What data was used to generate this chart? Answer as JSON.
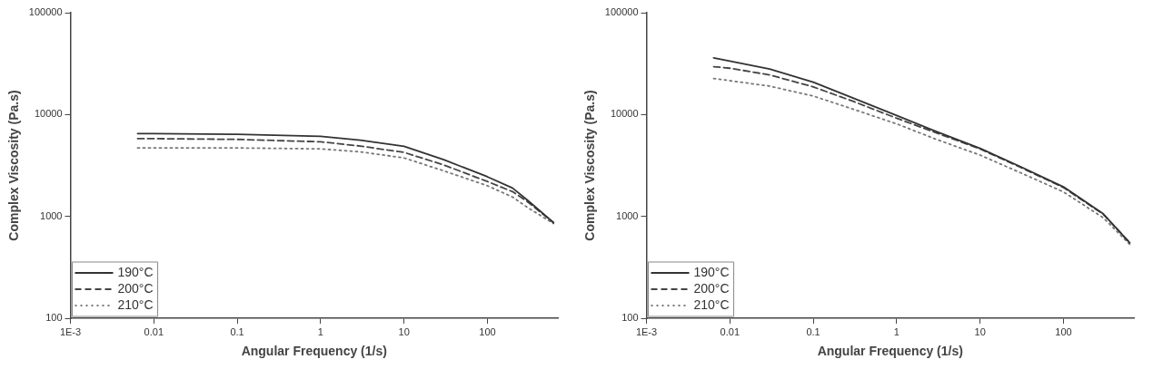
{
  "chart_data": [
    {
      "type": "line",
      "xlabel": "Angular Frequency (1/s)",
      "ylabel": "Complex Viscosity (Pa.s)",
      "log": "xy",
      "xlim": [
        0.001,
        700
      ],
      "ylim": [
        100,
        100000
      ],
      "xticks": [
        {
          "value": 0.001,
          "label": "1E-3"
        },
        0.01,
        0.1,
        1,
        10,
        100
      ],
      "yticks": [
        100,
        1000,
        10000,
        100000
      ],
      "grid": false,
      "legend": "bottom left",
      "marker": "none",
      "series": [
        {
          "name": "190°C",
          "color": "#333333",
          "line_style": "solid",
          "x": [
            0.0064,
            0.01,
            0.1,
            1,
            3,
            10,
            30,
            100,
            200,
            300,
            620
          ],
          "values": [
            6500,
            6500,
            6400,
            6100,
            5600,
            4870,
            3600,
            2450,
            1900,
            1450,
            870
          ]
        },
        {
          "name": "200°C",
          "color": "#444444",
          "line_style": "dashed",
          "x": [
            0.0064,
            0.01,
            0.1,
            1,
            3,
            10,
            30,
            100,
            200,
            300,
            620
          ],
          "values": [
            5800,
            5800,
            5700,
            5400,
            4900,
            4250,
            3200,
            2200,
            1750,
            1400,
            870
          ]
        },
        {
          "name": "210°C",
          "color": "#777777",
          "line_style": "dotted",
          "x": [
            0.0064,
            0.01,
            0.1,
            1,
            3,
            10,
            30,
            100,
            200,
            300,
            620
          ],
          "values": [
            4700,
            4700,
            4700,
            4600,
            4300,
            3750,
            2800,
            2000,
            1550,
            1230,
            850
          ]
        }
      ]
    },
    {
      "type": "line",
      "xlabel": "Angular Frequency (1/s)",
      "ylabel": "Complex Viscosity (Pa.s)",
      "log": "xy",
      "xlim": [
        0.001,
        700
      ],
      "ylim": [
        100,
        100000
      ],
      "xticks": [
        {
          "value": 0.001,
          "label": "1E-3"
        },
        0.01,
        0.1,
        1,
        10,
        100
      ],
      "yticks": [
        100,
        1000,
        10000,
        100000
      ],
      "grid": false,
      "legend": "bottom left",
      "marker": "none",
      "series": [
        {
          "name": "190°C",
          "color": "#333333",
          "line_style": "solid",
          "x": [
            0.0064,
            0.01,
            0.03,
            0.1,
            0.3,
            1,
            3,
            10,
            30,
            100,
            300,
            625
          ],
          "values": [
            36000,
            33500,
            28000,
            20800,
            14500,
            9800,
            6800,
            4650,
            3100,
            1950,
            1060,
            550
          ]
        },
        {
          "name": "200°C",
          "color": "#444444",
          "line_style": "dashed",
          "x": [
            0.0064,
            0.01,
            0.03,
            0.1,
            0.3,
            1,
            3,
            10,
            30,
            100,
            300,
            625
          ],
          "values": [
            29500,
            28500,
            24500,
            18700,
            13500,
            9200,
            6600,
            4600,
            3050,
            1920,
            1050,
            550
          ]
        },
        {
          "name": "210°C",
          "color": "#777777",
          "line_style": "dotted",
          "x": [
            0.0064,
            0.01,
            0.03,
            0.1,
            0.3,
            1,
            3,
            10,
            30,
            100,
            300,
            625
          ],
          "values": [
            22600,
            21500,
            19000,
            15200,
            11300,
            8100,
            5700,
            4000,
            2700,
            1740,
            970,
            530
          ]
        }
      ]
    }
  ]
}
